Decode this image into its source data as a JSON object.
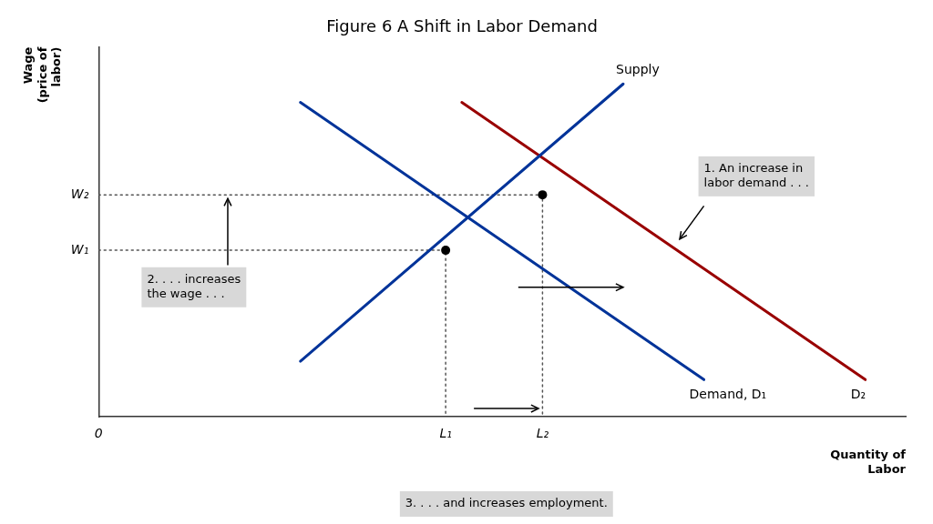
{
  "chart_data": {
    "type": "line",
    "title": "Figure 6 A Shift in Labor Demand",
    "x_label": "Quantity of\nLabor",
    "y_label": "Wage\n(price of\nlabor)",
    "xlim": [
      0,
      10
    ],
    "ylim": [
      0,
      10
    ],
    "xticks": [
      0,
      {
        "value": 4.3,
        "label": "L₁"
      },
      {
        "value": 5.5,
        "label": "L₂"
      }
    ],
    "yticks": [
      {
        "value": 4.5,
        "label": "W₁"
      },
      {
        "value": 6.0,
        "label": "W₂"
      }
    ],
    "grid": false,
    "legend": false,
    "series": [
      {
        "name": "Supply",
        "color": "#003399",
        "x": [
          2.5,
          6.5
        ],
        "values": [
          1.5,
          9.0
        ]
      },
      {
        "name": "Demand, D₁",
        "color": "#003399",
        "x": [
          2.5,
          7.5
        ],
        "values": [
          8.5,
          1.0
        ]
      },
      {
        "name": "D₂",
        "color": "#990000",
        "x": [
          4.5,
          9.5
        ],
        "values": [
          8.5,
          1.0
        ]
      },
      {
        "type": "scatter",
        "marker": "circle",
        "color": "#000000",
        "x": [
          4.3,
          5.5
        ],
        "values": [
          4.5,
          6.0
        ]
      },
      {
        "line_style": "dotted",
        "color": "#555555",
        "x": [
          0,
          4.3,
          4.3
        ],
        "values": [
          4.5,
          4.5,
          0
        ]
      },
      {
        "line_style": "dotted",
        "color": "#555555",
        "x": [
          0,
          5.5,
          5.5
        ],
        "values": [
          6.0,
          6.0,
          0
        ]
      }
    ],
    "annotations": [
      {
        "text": "1. An increase in\nlabor demand . . .",
        "x": 7.5,
        "y": 6.5,
        "color": "#d8d8d8",
        "arrow": {
          "from": [
            7.5,
            5.7
          ],
          "to": [
            7.2,
            4.8
          ]
        }
      },
      {
        "text": "2. . . . increases\nthe wage . . .",
        "x": 0.6,
        "y": 3.5,
        "color": "#d8d8d8",
        "arrow": {
          "from": [
            1.6,
            4.1
          ],
          "to": [
            1.6,
            5.9
          ]
        }
      },
      {
        "text": "3. . . . and increases employment.",
        "x": 3.8,
        "color": "#d8d8d8",
        "arrow": {
          "from": [
            5.2,
            3.5
          ],
          "to": [
            6.5,
            3.5
          ]
        }
      },
      {
        "arrow": {
          "from": [
            4.65,
            0.22
          ],
          "to": [
            5.45,
            0.22
          ]
        }
      }
    ]
  }
}
